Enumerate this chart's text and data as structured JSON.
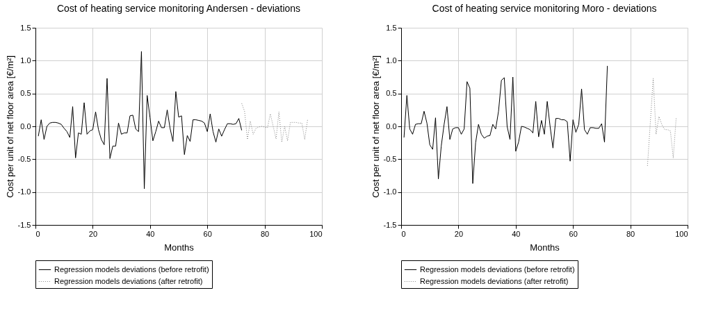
{
  "chart_data": [
    {
      "type": "line",
      "title": "Cost of heating service monitoring Andersen - deviations",
      "xlabel": "Months",
      "ylabel": "Cost per unit of net floor area [€/m²]",
      "xlim": [
        0,
        100
      ],
      "xticks": [
        0,
        20,
        40,
        60,
        80,
        100
      ],
      "ylim": [
        -1.5,
        1.5
      ],
      "yticks": [
        {
          "value": -1.5,
          "label": "-1.5"
        },
        {
          "value": -1,
          "label": "-1.0"
        },
        {
          "value": -0.5,
          "label": "-0.5"
        },
        {
          "value": 0,
          "label": "0.0"
        },
        {
          "value": 0.5,
          "label": "0.5"
        },
        {
          "value": 1,
          "label": "1.0"
        },
        {
          "value": 1.5,
          "label": "1.5"
        }
      ],
      "grid": true,
      "legend": "bottom",
      "marker": "none",
      "series": [
        {
          "name": "Regression models deviations (before retrofit)",
          "color": "#000000",
          "line_style": "solid",
          "x": [
            1,
            2,
            3,
            4,
            5,
            6,
            7,
            8,
            9,
            10,
            11,
            12,
            13,
            14,
            15,
            16,
            17,
            18,
            19,
            20,
            21,
            22,
            23,
            24,
            25,
            26,
            27,
            28,
            29,
            30,
            31,
            32,
            33,
            34,
            35,
            36,
            37,
            38,
            39,
            40,
            41,
            42,
            43,
            44,
            45,
            46,
            47,
            48,
            49,
            50,
            51,
            52,
            53,
            54,
            55,
            56,
            57,
            58,
            59,
            60,
            61,
            62,
            63,
            64,
            65,
            66,
            67,
            68,
            69,
            70,
            71,
            72
          ],
          "values": [
            -0.15,
            0.1,
            -0.2,
            0.0,
            0.05,
            0.06,
            0.06,
            0.05,
            0.03,
            -0.03,
            -0.08,
            -0.17,
            0.3,
            -0.48,
            -0.1,
            -0.12,
            0.36,
            -0.12,
            -0.07,
            -0.05,
            0.22,
            -0.05,
            -0.2,
            -0.28,
            0.73,
            -0.49,
            -0.3,
            -0.3,
            0.05,
            -0.12,
            -0.1,
            -0.1,
            0.16,
            0.17,
            -0.04,
            -0.08,
            1.14,
            -0.95,
            0.47,
            0.13,
            -0.22,
            -0.08,
            0.08,
            -0.02,
            -0.02,
            0.25,
            -0.03,
            -0.23,
            0.53,
            0.14,
            0.16,
            -0.43,
            -0.14,
            -0.23,
            0.1,
            0.1,
            0.09,
            0.08,
            0.05,
            -0.08,
            0.19,
            -0.08,
            -0.24,
            -0.04,
            -0.15,
            -0.05,
            0.04,
            0.04,
            0.03,
            0.04,
            0.12,
            -0.06
          ]
        },
        {
          "name": "Regression models deviations (after retrofit)",
          "color": "#808080",
          "line_style": "dotted",
          "x": [
            72,
            73,
            74,
            75,
            76,
            77,
            78,
            79,
            80,
            81,
            82,
            83,
            84,
            85,
            86,
            87,
            88,
            89,
            90,
            91,
            92,
            93,
            94,
            95
          ],
          "values": [
            0.35,
            0.23,
            -0.2,
            0.08,
            -0.12,
            -0.03,
            -0.01,
            0.0,
            -0.01,
            -0.02,
            0.19,
            0.0,
            -0.19,
            0.22,
            -0.24,
            0.0,
            -0.22,
            0.06,
            0.06,
            0.06,
            0.05,
            0.05,
            -0.2,
            0.1
          ]
        }
      ]
    },
    {
      "type": "line",
      "title": "Cost of heating service monitoring Moro - deviations",
      "xlabel": "Months",
      "ylabel": "Cost per unit of net floor area [€/m²]",
      "xlim": [
        0,
        100
      ],
      "xticks": [
        0,
        20,
        40,
        60,
        80,
        100
      ],
      "ylim": [
        -1.5,
        1.5
      ],
      "yticks": [
        {
          "value": -1.5,
          "label": "-1.5"
        },
        {
          "value": -1,
          "label": "-1.0"
        },
        {
          "value": -0.5,
          "label": "-0.5"
        },
        {
          "value": 0,
          "label": "0.0"
        },
        {
          "value": 0.5,
          "label": "0.5"
        },
        {
          "value": 1,
          "label": "1.0"
        },
        {
          "value": 1.5,
          "label": "1.5"
        }
      ],
      "grid": true,
      "legend": "bottom",
      "marker": "none",
      "series": [
        {
          "name": "Regression models deviations (before retrofit)",
          "color": "#000000",
          "line_style": "solid",
          "x": [
            1,
            2,
            3,
            4,
            5,
            6,
            7,
            8,
            9,
            10,
            11,
            12,
            13,
            14,
            15,
            16,
            17,
            18,
            19,
            20,
            21,
            22,
            23,
            24,
            25,
            26,
            27,
            28,
            29,
            30,
            31,
            32,
            33,
            34,
            35,
            36,
            37,
            38,
            39,
            40,
            41,
            42,
            43,
            44,
            45,
            46,
            47,
            48,
            49,
            50,
            51,
            52,
            53,
            54,
            55,
            56,
            57,
            58,
            59,
            60,
            61,
            62,
            63,
            64,
            65,
            66,
            67,
            68,
            69,
            70,
            71,
            72
          ],
          "values": [
            -0.17,
            0.47,
            -0.04,
            -0.12,
            0.03,
            0.04,
            0.04,
            0.23,
            0.05,
            -0.28,
            -0.35,
            0.13,
            -0.8,
            -0.3,
            0.03,
            0.3,
            -0.2,
            -0.04,
            -0.02,
            -0.02,
            -0.12,
            -0.04,
            0.68,
            0.58,
            -0.87,
            -0.25,
            0.03,
            -0.12,
            -0.18,
            -0.15,
            -0.14,
            0.03,
            -0.04,
            0.23,
            0.7,
            0.74,
            0.0,
            -0.2,
            0.75,
            -0.38,
            -0.24,
            0.0,
            -0.01,
            -0.03,
            -0.05,
            -0.1,
            0.38,
            -0.16,
            0.09,
            -0.12,
            0.38,
            0.0,
            -0.33,
            0.12,
            0.12,
            0.1,
            0.1,
            0.07,
            -0.53,
            0.1,
            -0.09,
            0.03,
            0.57,
            -0.05,
            -0.12,
            -0.02,
            -0.02,
            -0.03,
            -0.03,
            0.04,
            -0.24,
            0.92
          ]
        },
        {
          "name": "Regression models deviations (after retrofit)",
          "color": "#808080",
          "line_style": "dotted",
          "x": [
            86,
            88,
            89,
            90,
            91,
            92,
            93,
            94,
            95,
            96
          ],
          "values": [
            -0.6,
            0.73,
            -0.12,
            0.15,
            0.03,
            -0.05,
            -0.05,
            -0.07,
            -0.48,
            0.12
          ]
        }
      ]
    }
  ]
}
